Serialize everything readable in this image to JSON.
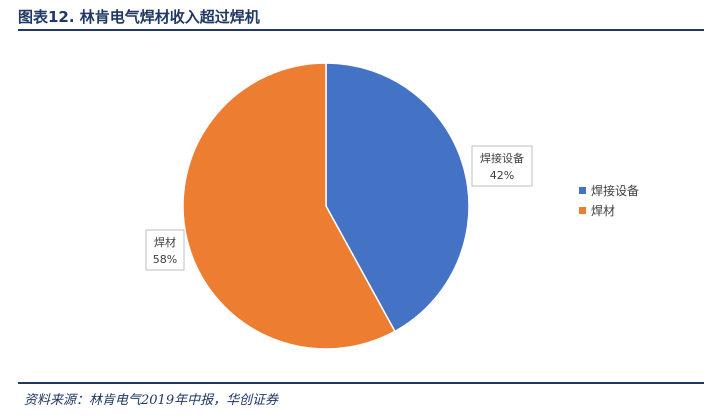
{
  "figure": {
    "title": "图表12.  林肯电气焊材收入超过焊机",
    "source": "资料来源：林肯电气2019年中报，华创证券"
  },
  "colors": {
    "accent": "#1f3864",
    "series": [
      "#4472c4",
      "#ed7d31"
    ]
  },
  "chart_data": {
    "type": "pie",
    "title": "",
    "legend_position": "right",
    "categories": [
      "焊接设备",
      "焊材"
    ],
    "values": [
      42,
      58
    ],
    "labels": [
      "42%",
      "58%"
    ],
    "colors": [
      "#4472c4",
      "#ed7d31"
    ]
  }
}
